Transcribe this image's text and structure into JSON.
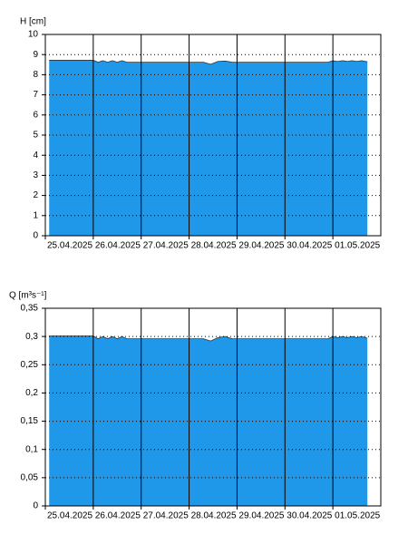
{
  "chart_data": [
    {
      "type": "area",
      "y_label": "H [cm]",
      "color": "#1f98ea",
      "xlim": [
        0,
        7
      ],
      "xticks": [
        {
          "value": 0,
          "label": "25.04.2025"
        },
        {
          "value": 1,
          "label": "26.04.2025"
        },
        {
          "value": 2,
          "label": "27.04.2025"
        },
        {
          "value": 3,
          "label": "28.04.2025"
        },
        {
          "value": 4,
          "label": "29.04.2025"
        },
        {
          "value": 5,
          "label": "30.04.2025"
        },
        {
          "value": 6,
          "label": "01.05.2025"
        }
      ],
      "ylim": [
        0,
        10
      ],
      "yticks": [
        0,
        1,
        2,
        3,
        4,
        5,
        6,
        7,
        8,
        9,
        10
      ],
      "grid": true,
      "x": [
        0.08,
        1.0,
        1.1,
        1.2,
        1.3,
        1.4,
        1.5,
        1.6,
        1.7,
        2.0,
        3.0,
        3.3,
        3.45,
        3.6,
        3.75,
        3.9,
        4.0,
        5.0,
        5.9,
        6.0,
        6.1,
        6.2,
        6.3,
        6.4,
        6.5,
        6.6,
        6.72
      ],
      "values": [
        8.72,
        8.72,
        8.62,
        8.7,
        8.62,
        8.7,
        8.62,
        8.7,
        8.62,
        8.62,
        8.62,
        8.62,
        8.52,
        8.66,
        8.68,
        8.62,
        8.62,
        8.62,
        8.62,
        8.7,
        8.66,
        8.7,
        8.66,
        8.7,
        8.66,
        8.7,
        8.64
      ]
    },
    {
      "type": "area",
      "y_label": "Q [m³s⁻¹]",
      "color": "#1f98ea",
      "xlim": [
        0,
        7
      ],
      "xticks": [
        {
          "value": 0,
          "label": "25.04.2025"
        },
        {
          "value": 1,
          "label": "26.04.2025"
        },
        {
          "value": 2,
          "label": "27.04.2025"
        },
        {
          "value": 3,
          "label": "28.04.2025"
        },
        {
          "value": 4,
          "label": "29.04.2025"
        },
        {
          "value": 5,
          "label": "30.04.2025"
        },
        {
          "value": 6,
          "label": "01.05.2025"
        }
      ],
      "ylim": [
        0,
        0.35
      ],
      "yticks": [
        0,
        {
          "value": 0.05,
          "label": "0,05"
        },
        {
          "value": 0.1,
          "label": "0,1"
        },
        {
          "value": 0.15,
          "label": "0,15"
        },
        {
          "value": 0.2,
          "label": "0,2"
        },
        {
          "value": 0.25,
          "label": "0,25"
        },
        {
          "value": 0.3,
          "label": "0,3"
        },
        {
          "value": 0.35,
          "label": "0,35"
        }
      ],
      "grid": true,
      "x": [
        0.08,
        1.0,
        1.1,
        1.2,
        1.3,
        1.4,
        1.5,
        1.6,
        1.7,
        2.0,
        3.0,
        3.3,
        3.45,
        3.6,
        3.75,
        3.9,
        4.0,
        5.0,
        5.9,
        6.0,
        6.1,
        6.2,
        6.3,
        6.4,
        6.5,
        6.6,
        6.72
      ],
      "values": [
        0.301,
        0.301,
        0.296,
        0.3,
        0.296,
        0.3,
        0.296,
        0.3,
        0.296,
        0.296,
        0.296,
        0.296,
        0.292,
        0.298,
        0.3,
        0.296,
        0.296,
        0.296,
        0.296,
        0.3,
        0.298,
        0.3,
        0.298,
        0.3,
        0.298,
        0.3,
        0.297
      ]
    }
  ]
}
